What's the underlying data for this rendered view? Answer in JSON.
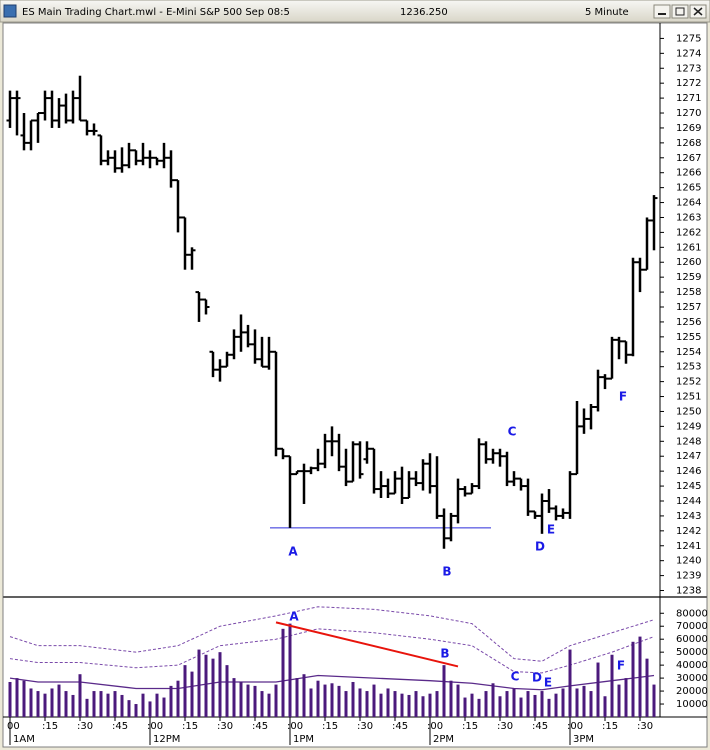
{
  "window": {
    "title": "ES Main Trading Chart.mwl - E-Mini S&P 500 Sep 08:5",
    "last_price": "1236.250",
    "interval": "5 Minute"
  },
  "chart_data": [
    {
      "type": "ohlc",
      "color": "#000000",
      "open": [
        1269.5,
        1271,
        1268.5,
        1268,
        1269.5,
        1270,
        1271,
        1269.5,
        1270.5,
        1269.5,
        1271,
        1269.5,
        1268.8,
        1268.5,
        1266.8,
        1267,
        1266.3,
        1266.5,
        1267.5,
        1266.8,
        1267,
        1267,
        1266.8,
        1267,
        1265.5,
        1263,
        1260.5,
        1258,
        1257.5,
        1254,
        1252.8,
        1253,
        1253.8,
        1255,
        1255.3,
        1254.5,
        1253.5,
        1253,
        1254,
        1247.5,
        1247,
        1245.8,
        1246,
        1246,
        1246.2,
        1246.5,
        1248,
        1248,
        1246.3,
        1245.3,
        1247.8,
        1246.8,
        1247.5,
        1244.8,
        1245,
        1244.5,
        1245.5,
        1244.2,
        1245.5,
        1245.2,
        1246.5,
        1245,
        1243,
        1241.5,
        1243,
        1244.8,
        1244.5,
        1245,
        1247.8,
        1246.8,
        1247.2,
        1247,
        1245.3,
        1245.5,
        1245,
        1243.3,
        1243,
        1244,
        1243.5,
        1243,
        1243.2,
        1245.8,
        1249,
        1249.5,
        1250.3,
        1252.3,
        1252.2,
        1254.8,
        1254.7,
        1253.8,
        1260,
        1259.5,
        1262.8
      ],
      "high": [
        1271.5,
        1271.5,
        1270,
        1269.5,
        1270,
        1271.5,
        1271.5,
        1271,
        1271.3,
        1271.5,
        1272.5,
        1269.5,
        1269.3,
        1268.5,
        1267.5,
        1267.5,
        1267.7,
        1268,
        1267.5,
        1268,
        1267.5,
        1267,
        1268,
        1267.5,
        1265.5,
        1263,
        1261,
        1258,
        1257.5,
        1254,
        1253.5,
        1254,
        1255.5,
        1256.5,
        1255.8,
        1255.5,
        1255,
        1255,
        1254,
        1247.5,
        1247,
        1246,
        1246.5,
        1246.3,
        1247.5,
        1248.5,
        1249,
        1248.5,
        1247.5,
        1248,
        1248,
        1248,
        1247.5,
        1246,
        1245.5,
        1246,
        1246.3,
        1246,
        1246,
        1246.8,
        1247.2,
        1247,
        1243.5,
        1243.2,
        1245.5,
        1245,
        1245.2,
        1248.2,
        1248,
        1247.5,
        1247.5,
        1247.3,
        1246,
        1245.5,
        1245.5,
        1243.3,
        1244.5,
        1244.8,
        1243.7,
        1243.5,
        1246,
        1250.7,
        1250.2,
        1250.5,
        1252.8,
        1252.5,
        1255,
        1255,
        1254.7,
        1260.3,
        1260.3,
        1263,
        1264.5
      ],
      "low": [
        1269,
        1268.5,
        1267.5,
        1267.5,
        1268,
        1269.5,
        1269,
        1269,
        1269.3,
        1269.3,
        1269.5,
        1268.5,
        1268.5,
        1266.5,
        1266.5,
        1266,
        1266,
        1266.3,
        1266.5,
        1266.5,
        1266.3,
        1266.5,
        1266.3,
        1265,
        1262,
        1259.5,
        1259.5,
        1256,
        1256.5,
        1252.3,
        1252,
        1253,
        1253.5,
        1254,
        1254.3,
        1253.2,
        1253,
        1252.8,
        1247,
        1246.8,
        1242.2,
        1245.8,
        1243.8,
        1245.8,
        1246,
        1246.2,
        1247,
        1246,
        1245,
        1245.3,
        1245.5,
        1246.5,
        1244.5,
        1244.2,
        1244.2,
        1244.5,
        1243.8,
        1244.2,
        1245,
        1244.7,
        1244.5,
        1242.8,
        1240.8,
        1241.3,
        1242.5,
        1244.3,
        1244.5,
        1244.8,
        1246.5,
        1246.5,
        1246.3,
        1245,
        1245,
        1244.7,
        1243,
        1242.8,
        1241.8,
        1243.2,
        1242.7,
        1242.8,
        1242.8,
        1245.8,
        1248.5,
        1248.8,
        1250,
        1251.5,
        1252.2,
        1253.5,
        1253.2,
        1253.7,
        1258,
        1259.5,
        1260.8
      ],
      "close": [
        1271,
        1271,
        1268,
        1269.5,
        1270,
        1271,
        1269.5,
        1270.5,
        1269.5,
        1271,
        1269.5,
        1268.8,
        1268.8,
        1266.8,
        1267,
        1266.3,
        1266.5,
        1267.5,
        1266.8,
        1267,
        1267,
        1266.8,
        1267,
        1265.5,
        1263,
        1260.5,
        1260.8,
        1257.5,
        1257,
        1252.8,
        1253,
        1253.8,
        1255,
        1255.3,
        1254.5,
        1253.5,
        1253,
        1254,
        1247.5,
        1247,
        1245.8,
        1246,
        1246,
        1246.2,
        1246.5,
        1248,
        1248,
        1246.3,
        1245.3,
        1247.8,
        1245.8,
        1247.5,
        1244.8,
        1245,
        1244.5,
        1245.5,
        1244.2,
        1245.5,
        1245.2,
        1246.5,
        1245,
        1243,
        1241.5,
        1243,
        1244.8,
        1244.5,
        1245,
        1247.8,
        1246.8,
        1247.2,
        1247,
        1245.3,
        1245.5,
        1245,
        1243.3,
        1243,
        1244,
        1243.5,
        1243,
        1243.2,
        1245.8,
        1249,
        1249.5,
        1250.3,
        1252.3,
        1252.2,
        1254.8,
        1254.7,
        1253.8,
        1260,
        1259.5,
        1262.8,
        1264.3
      ],
      "ylim": [
        1237.7,
        1276.1
      ],
      "yticks": [
        1238,
        1239,
        1240,
        1241,
        1242,
        1243,
        1244,
        1245,
        1246,
        1247,
        1248,
        1249,
        1250,
        1251,
        1252,
        1253,
        1254,
        1255,
        1256,
        1257,
        1258,
        1259,
        1260,
        1261,
        1262,
        1263,
        1264,
        1265,
        1266,
        1267,
        1268,
        1269,
        1270,
        1271,
        1272,
        1273,
        1274,
        1275
      ],
      "support_line": {
        "value": 1242.2,
        "color": "#2b2bd9"
      },
      "annotations": [
        "A",
        "B",
        "C",
        "D",
        "E",
        "F"
      ]
    },
    {
      "type": "bar",
      "color": "#4b1a7c",
      "values": [
        27000,
        30000,
        28000,
        22000,
        20000,
        18000,
        22000,
        25000,
        20000,
        17000,
        33000,
        14000,
        20000,
        20000,
        18000,
        20000,
        17000,
        13000,
        10000,
        18000,
        12000,
        18000,
        15000,
        24000,
        28000,
        40000,
        35000,
        52000,
        48000,
        45000,
        50000,
        40000,
        30000,
        27000,
        25000,
        24000,
        20000,
        18000,
        25000,
        68000,
        72000,
        30000,
        33000,
        22000,
        28000,
        25000,
        26000,
        24000,
        20000,
        27000,
        22000,
        20000,
        25000,
        18000,
        22000,
        20000,
        18000,
        17000,
        20000,
        16000,
        18000,
        20000,
        40000,
        28000,
        25000,
        15000,
        18000,
        14000,
        20000,
        26000,
        16000,
        20000,
        22000,
        15000,
        20000,
        17000,
        20000,
        14000,
        18000,
        22000,
        52000,
        22000,
        24000,
        20000,
        42000,
        16000,
        48000,
        25000,
        30000,
        58000,
        62000,
        45000,
        25000
      ],
      "ylim": [
        0,
        91000
      ],
      "yticks": [
        10000,
        20000,
        30000,
        40000,
        50000,
        60000,
        70000,
        80000
      ],
      "bands": {
        "x": [
          0,
          4,
          10,
          18,
          24,
          30,
          38,
          44,
          52,
          60,
          66,
          72,
          76,
          80,
          86,
          92
        ],
        "series": [
          {
            "color": "#5a2a8a",
            "dash": false,
            "values": [
              30000,
              27000,
              27000,
              22000,
              22000,
              27000,
              27000,
              32000,
              30000,
              28000,
              26000,
              22000,
              21000,
              24000,
              28000,
              32000
            ]
          },
          {
            "color": "#7a4aaa",
            "dash": true,
            "values": [
              45000,
              42000,
              42000,
              38000,
              40000,
              55000,
              60000,
              68000,
              65000,
              60000,
              55000,
              35000,
              34000,
              40000,
              50000,
              62000
            ]
          },
          {
            "color": "#7a4aaa",
            "dash": true,
            "values": [
              62000,
              55000,
              55000,
              50000,
              55000,
              70000,
              78000,
              85000,
              83000,
              78000,
              72000,
              45000,
              43000,
              55000,
              65000,
              75000
            ]
          }
        ]
      },
      "trend_line": {
        "x": [
          38,
          64
        ],
        "values": [
          73000,
          39000
        ],
        "color": "#e8140c"
      },
      "annotations": [
        "A",
        "B",
        "C",
        "D",
        "E",
        "F"
      ],
      "xtick_labels": [
        "00",
        ":15",
        ":30",
        ":45",
        ":00",
        ":15",
        ":30",
        ":45",
        ":00",
        ":15",
        ":30",
        ":45",
        ":00",
        ":15",
        ":30",
        ":45",
        ":00",
        ":15",
        ":30"
      ],
      "session_labels": [
        "1AM",
        "12PM",
        "1PM",
        "2PM",
        "3PM"
      ]
    }
  ]
}
